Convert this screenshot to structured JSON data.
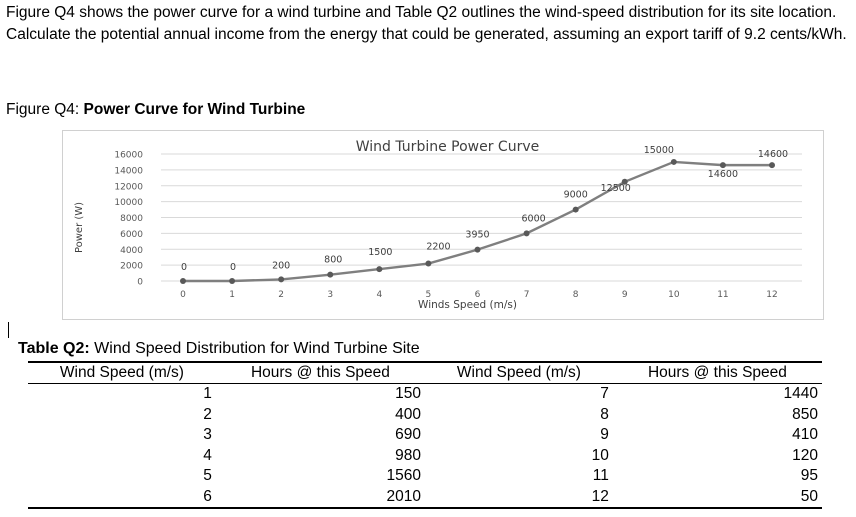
{
  "intro": "Figure Q4 shows the power curve for a wind turbine and Table Q2 outlines the wind-speed distribution for its site location. Calculate the potential annual income from the energy that could be generated, assuming an export tariff of 9.2 cents/kWh.",
  "figure": {
    "label_prefix": "Figure Q4: ",
    "label_bold": "Power Curve for Wind Turbine"
  },
  "chart_data": {
    "type": "line",
    "title": "Wind Turbine Power Curve",
    "xlabel": "Winds Speed (m/s)",
    "ylabel": "Power (W)",
    "x": [
      0,
      1,
      2,
      3,
      4,
      5,
      6,
      7,
      8,
      9,
      10,
      11,
      12
    ],
    "values": [
      0,
      0,
      200,
      800,
      1500,
      2200,
      3950,
      6000,
      9000,
      12500,
      15000,
      14600,
      14600
    ],
    "data_labels": [
      "0",
      "0",
      "200",
      "800",
      "1500",
      "2200",
      "3950",
      "6000",
      "9000",
      "12500",
      "15000",
      "14600",
      "14600"
    ],
    "x_ticks": [
      "0",
      "1",
      "2",
      "3",
      "4",
      "5",
      "6",
      "7",
      "8",
      "9",
      "10",
      "11",
      "12"
    ],
    "y_ticks": [
      "0",
      "2000",
      "4000",
      "6000",
      "8000",
      "10000",
      "12000",
      "14000",
      "16000"
    ],
    "ylim": [
      0,
      16000
    ],
    "xlim": [
      0,
      12
    ],
    "grid": true,
    "color": "#7f7f7f"
  },
  "table": {
    "caption_bold": "Table Q2:",
    "caption_rest": " Wind Speed Distribution for Wind Turbine Site",
    "headers": [
      "Wind Speed (m/s)",
      "Hours @ this Speed",
      "Wind Speed (m/s)",
      "Hours @ this Speed"
    ],
    "rows": [
      [
        "1",
        "150",
        "7",
        "1440"
      ],
      [
        "2",
        "400",
        "8",
        "850"
      ],
      [
        "3",
        "690",
        "9",
        "410"
      ],
      [
        "4",
        "980",
        "10",
        "120"
      ],
      [
        "5",
        "1560",
        "11",
        "95"
      ],
      [
        "6",
        "2010",
        "12",
        "50"
      ]
    ]
  }
}
